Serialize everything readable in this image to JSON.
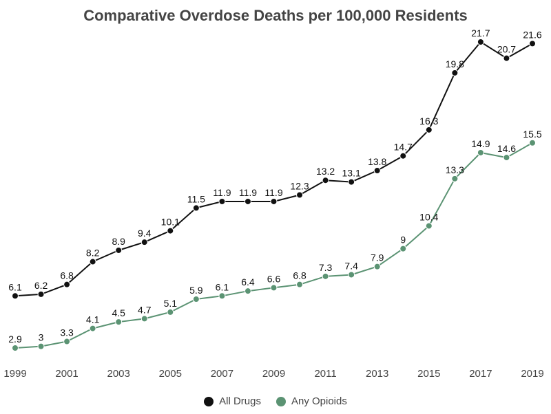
{
  "chart_data": {
    "type": "line",
    "title": "Comparative Overdose Deaths per 100,000 Residents",
    "xlabel": "",
    "ylabel": "",
    "x": [
      1999,
      2000,
      2001,
      2002,
      2003,
      2004,
      2005,
      2006,
      2007,
      2008,
      2009,
      2010,
      2011,
      2012,
      2013,
      2014,
      2015,
      2016,
      2017,
      2018,
      2019
    ],
    "x_tick_labels": [
      "1999",
      "2001",
      "2003",
      "2005",
      "2007",
      "2009",
      "2011",
      "2013",
      "2015",
      "2017",
      "2019"
    ],
    "x_tick_values": [
      1999,
      2001,
      2003,
      2005,
      2007,
      2009,
      2011,
      2013,
      2015,
      2017,
      2019
    ],
    "xlim": [
      1999,
      2019
    ],
    "ylim": [
      2.9,
      21.7
    ],
    "grid": false,
    "legend_position": "bottom-center",
    "series": [
      {
        "name": "All Drugs",
        "color": "#111111",
        "values": [
          6.1,
          6.2,
          6.8,
          8.2,
          8.9,
          9.4,
          10.1,
          11.5,
          11.9,
          11.9,
          11.9,
          12.3,
          13.2,
          13.1,
          13.8,
          14.7,
          16.3,
          19.8,
          21.7,
          20.7,
          21.6
        ],
        "labels": [
          "6.1",
          "6.2",
          "6.8",
          "8.2",
          "8.9",
          "9.4",
          "10.1",
          "11.5",
          "11.9",
          "11.9",
          "11.9",
          "12.3",
          "13.2",
          "13.1",
          "13.8",
          "14.7",
          "16.3",
          "19.8",
          "21.7",
          "20.7",
          "21.6"
        ]
      },
      {
        "name": "Any Opioids",
        "color": "#5b9373",
        "values": [
          2.9,
          3,
          3.3,
          4.1,
          4.5,
          4.7,
          5.1,
          5.9,
          6.1,
          6.4,
          6.6,
          6.8,
          7.3,
          7.4,
          7.9,
          9,
          10.4,
          13.3,
          14.9,
          14.6,
          15.5
        ],
        "labels": [
          "2.9",
          "3",
          "3.3",
          "4.1",
          "4.5",
          "4.7",
          "5.1",
          "5.9",
          "6.1",
          "6.4",
          "6.6",
          "6.8",
          "7.3",
          "7.4",
          "7.9",
          "9",
          "10.4",
          "13.3",
          "14.9",
          "14.6",
          "15.5"
        ]
      }
    ]
  }
}
